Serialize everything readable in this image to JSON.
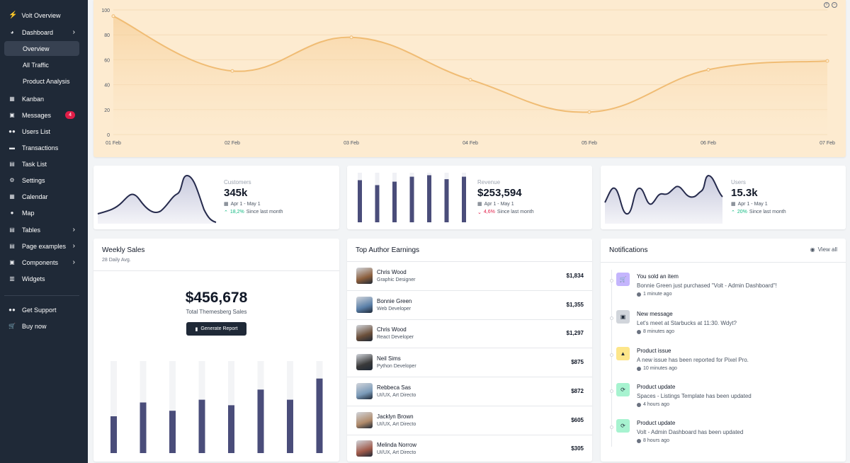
{
  "sidebar": {
    "brand": "Volt Overview",
    "items": [
      {
        "label": "Dashboard"
      },
      {
        "label": "Overview"
      },
      {
        "label": "All Traffic"
      },
      {
        "label": "Product Analysis"
      },
      {
        "label": "Kanban"
      },
      {
        "label": "Messages",
        "badge": "4"
      },
      {
        "label": "Users List"
      },
      {
        "label": "Transactions"
      },
      {
        "label": "Task List"
      },
      {
        "label": "Settings"
      },
      {
        "label": "Calendar"
      },
      {
        "label": "Map"
      },
      {
        "label": "Tables"
      },
      {
        "label": "Page examples"
      },
      {
        "label": "Components"
      },
      {
        "label": "Widgets"
      },
      {
        "label": "Get Support"
      },
      {
        "label": "Buy now"
      }
    ]
  },
  "chart_data": [
    {
      "type": "area",
      "categories": [
        "01 Feb",
        "02 Feb",
        "03 Feb",
        "04 Feb",
        "05 Feb",
        "06 Feb",
        "07 Feb"
      ],
      "values": [
        95,
        51,
        78,
        44,
        18,
        52,
        59
      ],
      "yticks": [
        "100",
        "80",
        "60",
        "40",
        "20",
        "0"
      ],
      "ylim": [
        0,
        100
      ],
      "color": "#f0bc74",
      "grid": true
    }
  ],
  "stats": [
    {
      "label": "Customers",
      "value": "345k",
      "range": "Apr 1 - May 1",
      "change": "18,2%",
      "since": "Since last month",
      "trend": "up"
    },
    {
      "label": "Revenue",
      "value": "$253,594",
      "range": "Apr 1 - May 1",
      "change": "4,6%",
      "since": "Since last month",
      "trend": "down"
    },
    {
      "label": "Users",
      "value": "15.3k",
      "range": "Apr 1 - May 1",
      "change": "20%",
      "since": "Since last month",
      "trend": "up"
    }
  ],
  "weekly": {
    "title": "Weekly Sales",
    "sub": "28 Daily Avg.",
    "amount": "$456,678",
    "amount_label": "Total Themesberg Sales",
    "button": "Generate Report",
    "bars": [
      0.4,
      0.55,
      0.46,
      0.58,
      0.52,
      0.69,
      0.58,
      0.81
    ]
  },
  "revenue_bars": [
    0.85,
    0.75,
    0.82,
    0.92,
    0.95,
    0.87,
    0.92
  ],
  "authors": {
    "title": "Top Author Earnings",
    "rows": [
      {
        "name": "Chris Wood",
        "role": "Graphic Designer",
        "amount": "$1,834"
      },
      {
        "name": "Bonnie Green",
        "role": "Web Developer",
        "amount": "$1,355"
      },
      {
        "name": "Chris Wood",
        "role": "React Developer",
        "amount": "$1,297"
      },
      {
        "name": "Neil Sims",
        "role": "Python Developer",
        "amount": "$875"
      },
      {
        "name": "Rebbeca Sas",
        "role": "UI/UX, Art Directo",
        "amount": "$872"
      },
      {
        "name": "Jacklyn Brown",
        "role": "UI/UX, Art Directo",
        "amount": "$605"
      },
      {
        "name": "Melinda Norrow",
        "role": "UI/UX, Art Directo",
        "amount": "$305"
      }
    ]
  },
  "notifications": {
    "title": "Notifications",
    "view_all": "View all",
    "items": [
      {
        "title": "You sold an item",
        "text": "Bonnie Green just purchased \"Volt - Admin Dashboard\"!",
        "time": "1 minute ago",
        "icon": "cart-icon",
        "color": "#c4b5fd"
      },
      {
        "title": "New message",
        "text": "Let's meet at Starbucks at 11:30. Wdyt?",
        "time": "8 minutes ago",
        "icon": "inbox-icon",
        "color": "#d1d5db"
      },
      {
        "title": "Product issue",
        "text": "A new issue has been reported for Pixel Pro.",
        "time": "10 minutes ago",
        "icon": "warning-icon",
        "color": "#fde68a"
      },
      {
        "title": "Product update",
        "text": "Spaces - Listings Template has been updated",
        "time": "4 hours ago",
        "icon": "refresh-icon",
        "color": "#a7f3d0"
      },
      {
        "title": "Product update",
        "text": "Volt - Admin Dashboard has been updated",
        "time": "8 hours ago",
        "icon": "refresh-icon",
        "color": "#a7f3d0"
      }
    ]
  }
}
